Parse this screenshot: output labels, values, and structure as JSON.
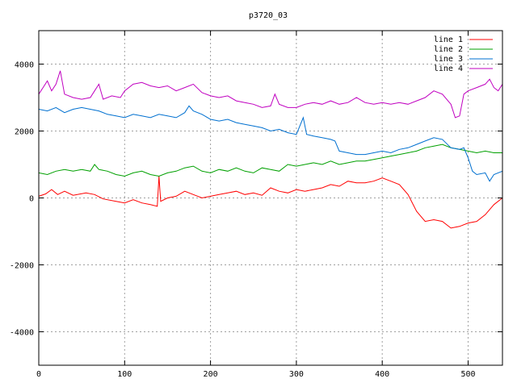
{
  "chart_data": {
    "type": "line",
    "title": "p3720_03",
    "xlabel": "",
    "ylabel": "",
    "xlim": [
      0,
      540
    ],
    "ylim": [
      -5000,
      5000
    ],
    "xticks": [
      0,
      100,
      200,
      300,
      400,
      500
    ],
    "yticks": [
      -4000,
      -2000,
      0,
      2000,
      4000
    ],
    "grid": true,
    "legend_position": "top-right",
    "series": [
      {
        "name": "line 1",
        "color": "#ff0000",
        "points": [
          [
            0,
            50
          ],
          [
            8,
            120
          ],
          [
            15,
            250
          ],
          [
            22,
            100
          ],
          [
            30,
            200
          ],
          [
            40,
            80
          ],
          [
            55,
            150
          ],
          [
            65,
            100
          ],
          [
            75,
            -30
          ],
          [
            90,
            -100
          ],
          [
            100,
            -150
          ],
          [
            110,
            -50
          ],
          [
            120,
            -150
          ],
          [
            130,
            -200
          ],
          [
            138,
            -250
          ],
          [
            140,
            650
          ],
          [
            142,
            -100
          ],
          [
            150,
            0
          ],
          [
            160,
            50
          ],
          [
            170,
            200
          ],
          [
            180,
            100
          ],
          [
            190,
            0
          ],
          [
            200,
            50
          ],
          [
            210,
            100
          ],
          [
            220,
            150
          ],
          [
            230,
            200
          ],
          [
            240,
            100
          ],
          [
            250,
            150
          ],
          [
            260,
            80
          ],
          [
            270,
            300
          ],
          [
            280,
            200
          ],
          [
            290,
            150
          ],
          [
            300,
            250
          ],
          [
            310,
            200
          ],
          [
            320,
            250
          ],
          [
            330,
            300
          ],
          [
            340,
            400
          ],
          [
            350,
            350
          ],
          [
            360,
            500
          ],
          [
            370,
            450
          ],
          [
            380,
            450
          ],
          [
            390,
            500
          ],
          [
            400,
            600
          ],
          [
            410,
            500
          ],
          [
            420,
            400
          ],
          [
            430,
            100
          ],
          [
            440,
            -400
          ],
          [
            450,
            -700
          ],
          [
            460,
            -650
          ],
          [
            470,
            -700
          ],
          [
            480,
            -900
          ],
          [
            490,
            -850
          ],
          [
            500,
            -750
          ],
          [
            510,
            -700
          ],
          [
            520,
            -500
          ],
          [
            530,
            -200
          ],
          [
            540,
            0
          ]
        ]
      },
      {
        "name": "line 2",
        "color": "#00a000",
        "points": [
          [
            0,
            750
          ],
          [
            10,
            700
          ],
          [
            20,
            800
          ],
          [
            30,
            850
          ],
          [
            40,
            800
          ],
          [
            50,
            850
          ],
          [
            60,
            800
          ],
          [
            65,
            1000
          ],
          [
            70,
            850
          ],
          [
            80,
            800
          ],
          [
            90,
            700
          ],
          [
            100,
            650
          ],
          [
            110,
            750
          ],
          [
            120,
            800
          ],
          [
            130,
            700
          ],
          [
            140,
            650
          ],
          [
            150,
            750
          ],
          [
            160,
            800
          ],
          [
            170,
            900
          ],
          [
            180,
            950
          ],
          [
            190,
            800
          ],
          [
            200,
            750
          ],
          [
            210,
            850
          ],
          [
            220,
            800
          ],
          [
            230,
            900
          ],
          [
            240,
            800
          ],
          [
            250,
            750
          ],
          [
            260,
            900
          ],
          [
            270,
            850
          ],
          [
            280,
            800
          ],
          [
            290,
            1000
          ],
          [
            300,
            950
          ],
          [
            310,
            1000
          ],
          [
            320,
            1050
          ],
          [
            330,
            1000
          ],
          [
            340,
            1100
          ],
          [
            350,
            1000
          ],
          [
            360,
            1050
          ],
          [
            370,
            1100
          ],
          [
            380,
            1100
          ],
          [
            390,
            1150
          ],
          [
            400,
            1200
          ],
          [
            410,
            1250
          ],
          [
            420,
            1300
          ],
          [
            430,
            1350
          ],
          [
            440,
            1400
          ],
          [
            450,
            1500
          ],
          [
            460,
            1550
          ],
          [
            470,
            1600
          ],
          [
            480,
            1500
          ],
          [
            490,
            1450
          ],
          [
            500,
            1400
          ],
          [
            510,
            1350
          ],
          [
            520,
            1400
          ],
          [
            530,
            1350
          ],
          [
            540,
            1350
          ]
        ]
      },
      {
        "name": "line 3",
        "color": "#0070d0",
        "points": [
          [
            0,
            2650
          ],
          [
            10,
            2600
          ],
          [
            20,
            2700
          ],
          [
            30,
            2550
          ],
          [
            40,
            2650
          ],
          [
            50,
            2700
          ],
          [
            60,
            2650
          ],
          [
            70,
            2600
          ],
          [
            80,
            2500
          ],
          [
            90,
            2450
          ],
          [
            100,
            2400
          ],
          [
            110,
            2500
          ],
          [
            120,
            2450
          ],
          [
            130,
            2400
          ],
          [
            140,
            2500
          ],
          [
            150,
            2450
          ],
          [
            160,
            2400
          ],
          [
            170,
            2550
          ],
          [
            175,
            2750
          ],
          [
            180,
            2600
          ],
          [
            190,
            2500
          ],
          [
            200,
            2350
          ],
          [
            210,
            2300
          ],
          [
            220,
            2350
          ],
          [
            230,
            2250
          ],
          [
            240,
            2200
          ],
          [
            250,
            2150
          ],
          [
            260,
            2100
          ],
          [
            270,
            2000
          ],
          [
            280,
            2050
          ],
          [
            290,
            1950
          ],
          [
            300,
            1900
          ],
          [
            308,
            2400
          ],
          [
            312,
            1900
          ],
          [
            320,
            1850
          ],
          [
            330,
            1800
          ],
          [
            340,
            1750
          ],
          [
            345,
            1700
          ],
          [
            350,
            1400
          ],
          [
            360,
            1350
          ],
          [
            370,
            1300
          ],
          [
            380,
            1300
          ],
          [
            390,
            1350
          ],
          [
            400,
            1400
          ],
          [
            410,
            1350
          ],
          [
            420,
            1450
          ],
          [
            430,
            1500
          ],
          [
            440,
            1600
          ],
          [
            450,
            1700
          ],
          [
            460,
            1800
          ],
          [
            470,
            1750
          ],
          [
            480,
            1500
          ],
          [
            490,
            1450
          ],
          [
            495,
            1500
          ],
          [
            500,
            1200
          ],
          [
            505,
            800
          ],
          [
            510,
            700
          ],
          [
            520,
            750
          ],
          [
            525,
            500
          ],
          [
            530,
            700
          ],
          [
            540,
            800
          ]
        ]
      },
      {
        "name": "line 4",
        "color": "#c000c0",
        "points": [
          [
            0,
            3100
          ],
          [
            5,
            3300
          ],
          [
            10,
            3500
          ],
          [
            15,
            3200
          ],
          [
            20,
            3400
          ],
          [
            25,
            3800
          ],
          [
            30,
            3100
          ],
          [
            40,
            3000
          ],
          [
            50,
            2950
          ],
          [
            60,
            3000
          ],
          [
            65,
            3200
          ],
          [
            70,
            3400
          ],
          [
            75,
            2950
          ],
          [
            85,
            3050
          ],
          [
            95,
            3000
          ],
          [
            100,
            3200
          ],
          [
            110,
            3400
          ],
          [
            120,
            3450
          ],
          [
            130,
            3350
          ],
          [
            140,
            3300
          ],
          [
            150,
            3350
          ],
          [
            160,
            3200
          ],
          [
            170,
            3300
          ],
          [
            180,
            3400
          ],
          [
            190,
            3150
          ],
          [
            200,
            3050
          ],
          [
            210,
            3000
          ],
          [
            220,
            3050
          ],
          [
            230,
            2900
          ],
          [
            240,
            2850
          ],
          [
            250,
            2800
          ],
          [
            260,
            2700
          ],
          [
            270,
            2750
          ],
          [
            275,
            3100
          ],
          [
            280,
            2800
          ],
          [
            290,
            2700
          ],
          [
            300,
            2700
          ],
          [
            310,
            2800
          ],
          [
            320,
            2850
          ],
          [
            330,
            2800
          ],
          [
            340,
            2900
          ],
          [
            350,
            2800
          ],
          [
            360,
            2850
          ],
          [
            370,
            3000
          ],
          [
            380,
            2850
          ],
          [
            390,
            2800
          ],
          [
            400,
            2850
          ],
          [
            410,
            2800
          ],
          [
            420,
            2850
          ],
          [
            430,
            2800
          ],
          [
            440,
            2900
          ],
          [
            450,
            3000
          ],
          [
            460,
            3200
          ],
          [
            470,
            3100
          ],
          [
            480,
            2800
          ],
          [
            485,
            2400
          ],
          [
            490,
            2450
          ],
          [
            495,
            3100
          ],
          [
            500,
            3200
          ],
          [
            510,
            3300
          ],
          [
            520,
            3400
          ],
          [
            525,
            3550
          ],
          [
            530,
            3300
          ],
          [
            535,
            3200
          ],
          [
            540,
            3400
          ]
        ]
      }
    ]
  }
}
